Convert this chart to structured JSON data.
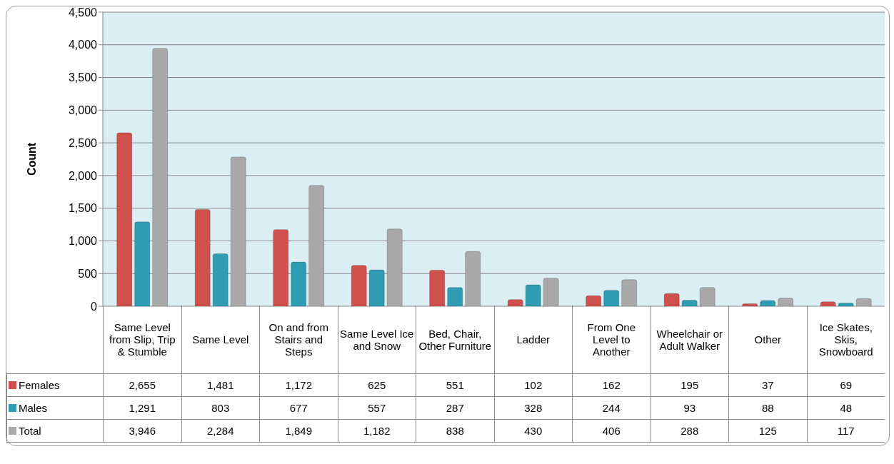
{
  "chart_data": {
    "type": "bar",
    "ylabel": "Count",
    "categories": [
      "Same Level from Slip, Trip & Stumble",
      "Same Level",
      "On and from Stairs and Steps",
      "Same Level Ice and Snow",
      "Bed, Chair, Other Furniture",
      "Ladder",
      "From One Level to Another",
      "Wheelchair or Adult Walker",
      "Other",
      "Ice Skates, Skis, Snowboard"
    ],
    "series": [
      {
        "name": "Females",
        "color": "#d0504d",
        "values": [
          2655,
          1481,
          1172,
          625,
          551,
          102,
          162,
          195,
          37,
          69
        ],
        "value_labels": [
          "2,655",
          "1,481",
          "1,172",
          "625",
          "551",
          "102",
          "162",
          "195",
          "37",
          "69"
        ]
      },
      {
        "name": "Males",
        "color": "#2e9db3",
        "values": [
          1291,
          803,
          677,
          557,
          287,
          328,
          244,
          93,
          88,
          48
        ],
        "value_labels": [
          "1,291",
          "803",
          "677",
          "557",
          "287",
          "328",
          "244",
          "93",
          "88",
          "48"
        ]
      },
      {
        "name": "Total",
        "color": "#a9a9a9",
        "values": [
          3946,
          2284,
          1849,
          1182,
          838,
          430,
          406,
          288,
          125,
          117
        ],
        "value_labels": [
          "3,946",
          "2,284",
          "1,849",
          "1,182",
          "838",
          "430",
          "406",
          "288",
          "125",
          "117"
        ]
      }
    ],
    "ylim": [
      0,
      4500
    ],
    "yticks": [
      {
        "value": 0,
        "label": "0"
      },
      {
        "value": 500,
        "label": "500"
      },
      {
        "value": 1000,
        "label": "1,000"
      },
      {
        "value": 1500,
        "label": "1,500"
      },
      {
        "value": 2000,
        "label": "2,000"
      },
      {
        "value": 2500,
        "label": "2,500"
      },
      {
        "value": 3000,
        "label": "3,000"
      },
      {
        "value": 3500,
        "label": "3,500"
      },
      {
        "value": 4000,
        "label": "4,000"
      },
      {
        "value": 4500,
        "label": "4,500"
      }
    ],
    "grid": "y",
    "legend": "bottom"
  }
}
